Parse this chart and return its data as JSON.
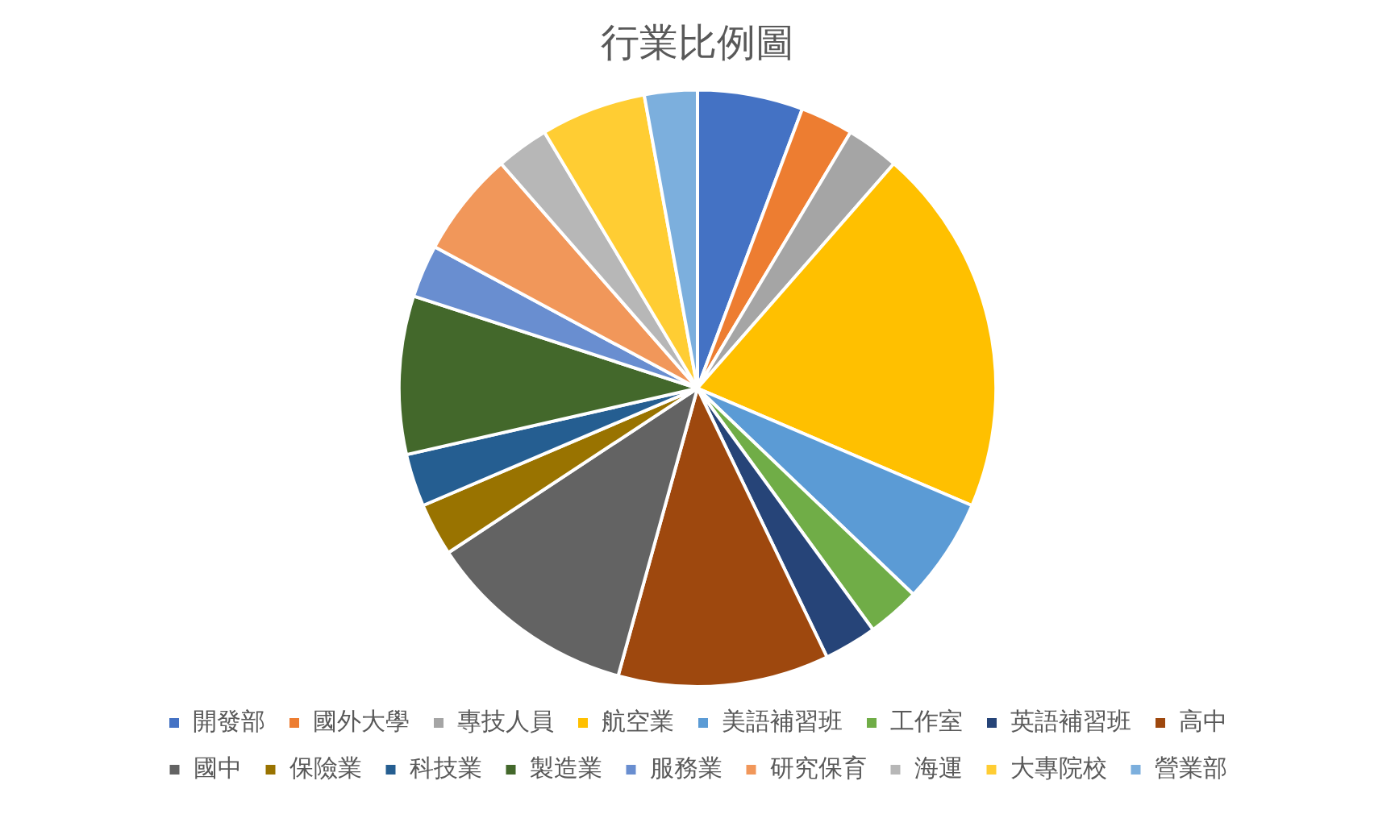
{
  "chart_data": {
    "type": "pie",
    "title": "行業比例圖",
    "categories": [
      "開發部",
      "國外大學",
      "專技人員",
      "航空業",
      "美語補習班",
      "工作室",
      "英語補習班",
      "高中",
      "國中",
      "保險業",
      "科技業",
      "製造業",
      "服務業",
      "研究保育",
      "海運",
      "大專院校",
      "營業部"
    ],
    "values": [
      5.71,
      2.86,
      2.86,
      20,
      5.71,
      2.86,
      2.86,
      11.43,
      11.43,
      2.86,
      2.86,
      8.57,
      2.86,
      5.71,
      2.86,
      5.71,
      2.86
    ],
    "colors": [
      "#4472c4",
      "#ed7d31",
      "#a5a5a5",
      "#ffc000",
      "#5b9bd5",
      "#70ad47",
      "#264478",
      "#9e480e",
      "#636363",
      "#997300",
      "#255e91",
      "#43682b",
      "#698ed0",
      "#f1975a",
      "#b7b7b7",
      "#ffcd33",
      "#7cafdd"
    ],
    "legend": "bottom"
  }
}
